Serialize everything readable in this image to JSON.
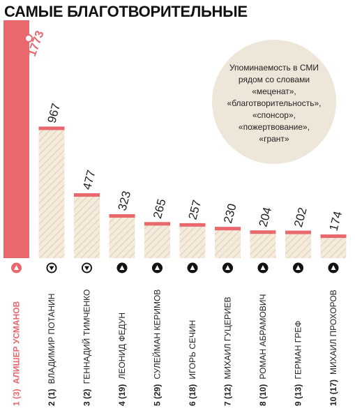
{
  "title": "САМЫЕ БЛАГОТВОРИТЕЛЬНЫЕ",
  "legend_lines": [
    "Упоминаемость в СМИ",
    "рядом со словами",
    "«меценат»,",
    "«благотворительность»,",
    "«спонсор»,",
    "«пожертвование»,",
    "«грант»"
  ],
  "colors": {
    "accent": "#e8686e",
    "bar_fill": "#f5ebdc",
    "hatch": "#e3d2ba",
    "icon": "#111111"
  },
  "chart_data": {
    "type": "bar",
    "title": "САМЫЕ БЛАГОТВОРИТЕЛЬНЫЕ",
    "categories": [
      "АЛИШЕР УСМАНОВ",
      "ВЛАДИМИР ПОТАНИН",
      "ГЕННАДИЙ ТИМЧЕНКО",
      "ЛЕОНИД ФЕДУН",
      "СУЛЕЙМАН КЕРИМОВ",
      "ИГОРЬ СЕЧИН",
      "МИХАИЛ ГУЦЕРИЕВ",
      "РОМАН АБРАМОВИЧ",
      "ГЕРМАН ГРЕФ",
      "МИХАИЛ ПРОХОРОВ"
    ],
    "values": [
      1773,
      967,
      477,
      323,
      265,
      257,
      230,
      204,
      202,
      174
    ],
    "value_labels": [
      "1773",
      "967",
      "477",
      "323",
      "265",
      "257",
      "230",
      "204",
      "202",
      "174"
    ],
    "ranks": [
      "1 (3)",
      "2 (1)",
      "3 (2)",
      "4 (19)",
      "5 (29)",
      "6 (18)",
      "7 (12)",
      "8 (10)",
      "9 (13)",
      "10 (17)"
    ],
    "trend": [
      "up",
      "down",
      "down",
      "up",
      "up",
      "up",
      "up",
      "up",
      "up",
      "up"
    ]
  }
}
